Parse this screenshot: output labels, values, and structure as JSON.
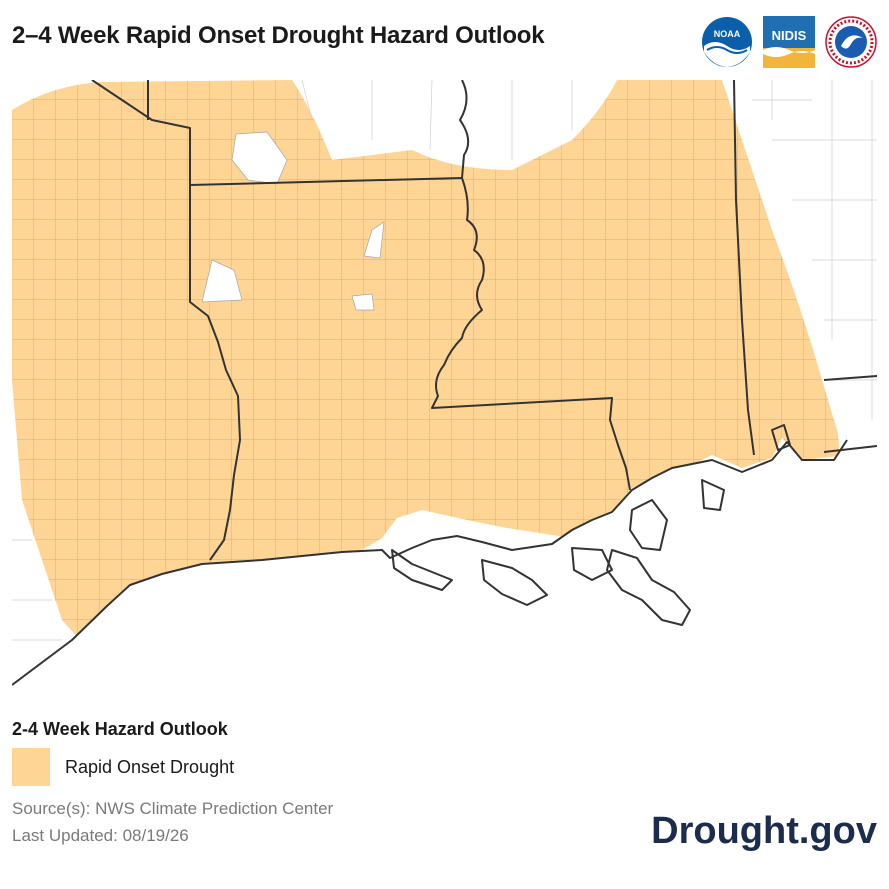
{
  "header": {
    "title": "2–4 Week Rapid Onset Drought Hazard Outlook",
    "logos": [
      {
        "name": "noaa-logo",
        "text": "NOAA"
      },
      {
        "name": "nidis-logo",
        "text": "NIDIS"
      },
      {
        "name": "nws-logo",
        "text": "National Weather Service"
      }
    ]
  },
  "legend": {
    "title": "2-4 Week Hazard Outlook",
    "items": [
      {
        "label": "Rapid Onset Drought",
        "color": "#ffd596"
      }
    ]
  },
  "footer": {
    "source": "Source(s): NWS Climate Prediction Center",
    "last_updated": "Last Updated: 08/19/26",
    "brand": "Drought.gov"
  },
  "colors": {
    "hazard_fill": "#ffd596",
    "county_lines": "#a6a6a6",
    "state_lines": "#333333",
    "brand": "#1c2c4c"
  }
}
